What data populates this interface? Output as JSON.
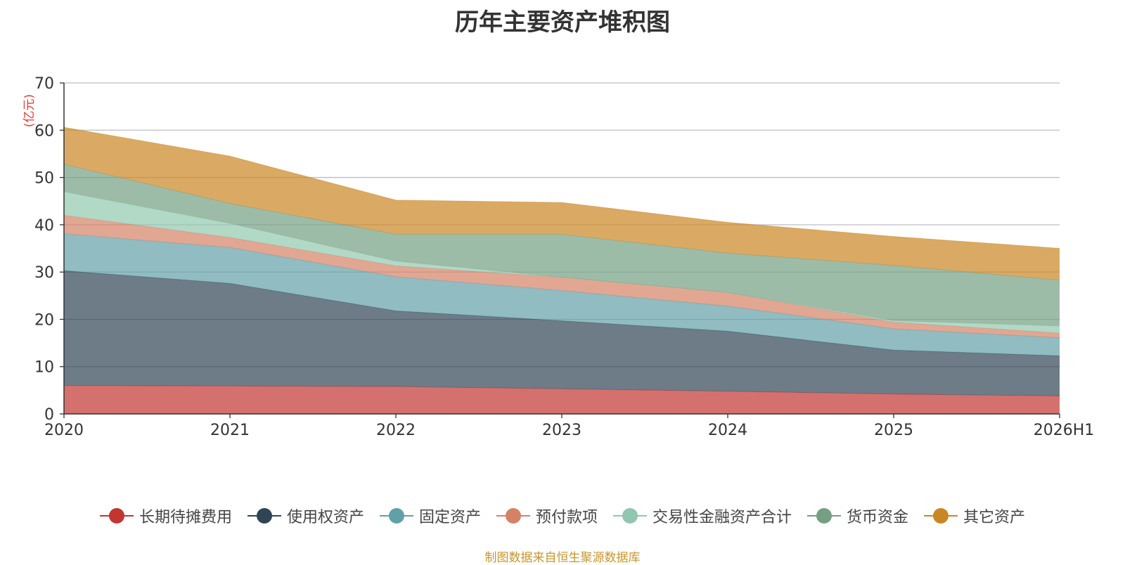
{
  "page": {
    "title": "历年主要资产堆积图",
    "unit_label": "(亿元)",
    "source": "制图数据来自恒生聚源数据库"
  },
  "colors": {
    "title": "#333333",
    "unit": "#e53935",
    "source": "#c8962a",
    "grid": "#bdbdc7",
    "axis": "#333333"
  },
  "chart_data": {
    "type": "area",
    "stacked": true,
    "title": "历年主要资产堆积图",
    "ylabel": "(亿元)",
    "xlabel": "",
    "categories": [
      "2020",
      "2021",
      "2022",
      "2023",
      "2024",
      "2025",
      "2026H1"
    ],
    "ylim": [
      0,
      70
    ],
    "yticks": [
      0,
      10,
      20,
      30,
      40,
      50,
      60,
      70
    ],
    "grid": true,
    "legend_position": "bottom",
    "series": [
      {
        "name": "长期待摊费用",
        "color": "#c23531",
        "values": [
          6.0,
          5.9,
          5.8,
          5.3,
          4.8,
          4.2,
          3.8
        ]
      },
      {
        "name": "使用权资产",
        "color": "#2f4554",
        "values": [
          24.3,
          21.7,
          16.0,
          14.4,
          12.7,
          9.3,
          8.5
        ]
      },
      {
        "name": "固定资产",
        "color": "#61a0a8",
        "values": [
          7.8,
          7.6,
          7.2,
          6.4,
          5.3,
          4.5,
          3.8
        ]
      },
      {
        "name": "预付款项",
        "color": "#d48265",
        "values": [
          3.9,
          2.1,
          2.3,
          2.8,
          2.9,
          1.4,
          1.0
        ]
      },
      {
        "name": "交易性金融资产合计",
        "color": "#91c7ae",
        "values": [
          5.0,
          3.0,
          1.0,
          0.0,
          0.0,
          0.3,
          1.5
        ]
      },
      {
        "name": "货币资金",
        "color": "#749f83",
        "values": [
          5.8,
          4.2,
          5.7,
          9.1,
          8.3,
          11.7,
          9.7
        ]
      },
      {
        "name": "其它资产",
        "color": "#ca8622",
        "values": [
          7.8,
          10.0,
          7.2,
          6.7,
          6.5,
          6.1,
          6.7
        ]
      }
    ]
  }
}
